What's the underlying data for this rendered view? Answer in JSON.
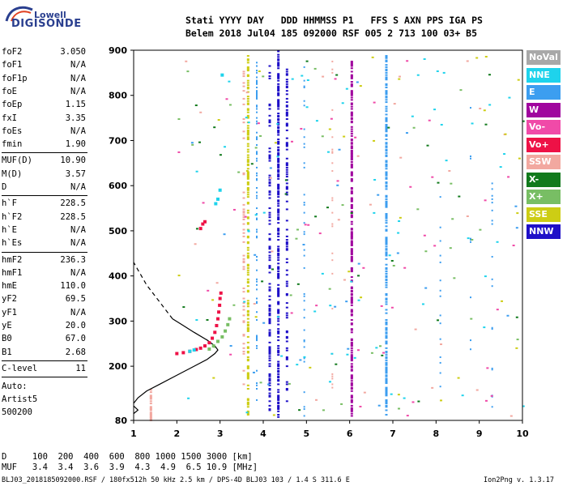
{
  "logo": {
    "top": "Lowell",
    "main": "DIGISONDE"
  },
  "header": {
    "line1": "Stati YYYY DAY   DDD HHMMSS P1   FFS S AXN PPS IGA PS",
    "line2": "Belem 2018 Jul04 185 092000 RSF 005 2 713 100 03+ B5"
  },
  "params_group1": [
    {
      "label": "foF2",
      "value": "3.050"
    },
    {
      "label": "foF1",
      "value": "N/A"
    },
    {
      "label": "foF1p",
      "value": "N/A"
    },
    {
      "label": "foE",
      "value": "N/A"
    },
    {
      "label": "foEp",
      "value": "1.15"
    },
    {
      "label": "fxI",
      "value": "3.35"
    },
    {
      "label": "foEs",
      "value": "N/A"
    },
    {
      "label": "fmin",
      "value": "1.90"
    }
  ],
  "params_group2": [
    {
      "label": "MUF(D)",
      "value": "10.90"
    },
    {
      "label": "M(D)",
      "value": "3.57"
    },
    {
      "label": "D",
      "value": "N/A"
    }
  ],
  "params_group3": [
    {
      "label": "h`F",
      "value": "228.5"
    },
    {
      "label": "h`F2",
      "value": "228.5"
    },
    {
      "label": "h`E",
      "value": "N/A"
    },
    {
      "label": "h`Es",
      "value": "N/A"
    }
  ],
  "params_group4": [
    {
      "label": "hmF2",
      "value": "236.3"
    },
    {
      "label": "hmF1",
      "value": "N/A"
    },
    {
      "label": "hmE",
      "value": "110.0"
    },
    {
      "label": "yF2",
      "value": "69.5"
    },
    {
      "label": "yF1",
      "value": "N/A"
    },
    {
      "label": "yE",
      "value": "20.0"
    },
    {
      "label": "B0",
      "value": "67.0"
    },
    {
      "label": "B1",
      "value": "2.68"
    }
  ],
  "clevel": {
    "label": "C-level",
    "value": "11"
  },
  "auto": [
    "Auto:",
    "Artist5",
    "500200"
  ],
  "legend": [
    {
      "name": "NoVal",
      "color": "#a8a8a8"
    },
    {
      "name": "NNE",
      "color": "#1ed3ec"
    },
    {
      "name": "E",
      "color": "#3c9ef0"
    },
    {
      "name": "W",
      "color": "#a0059e"
    },
    {
      "name": "Vo-",
      "color": "#f04aa8"
    },
    {
      "name": "Vo+",
      "color": "#ee1146"
    },
    {
      "name": "SSW",
      "color": "#f2a8a0"
    },
    {
      "name": "X-",
      "color": "#117a1c"
    },
    {
      "name": "X+",
      "color": "#78be64"
    },
    {
      "name": "SSE",
      "color": "#cdcd14"
    },
    {
      "name": "NNW",
      "color": "#1f10c8"
    }
  ],
  "muf_table": {
    "line1": "D     100  200  400  600  800 1000 1500 3000 [km]",
    "line2": "MUF   3.4  3.4  3.6  3.9  4.3  4.9  6.5 10.9 [MHz]"
  },
  "footer": {
    "left": "BLJ03_2018185092000.RSF / 180fx512h 50 kHz 2.5 km / DPS-4D BLJ03 103 / 1.4 S 311.6 E",
    "right": "Ion2Png v. 1.3.17"
  },
  "chart_data": {
    "type": "scatter",
    "xlim": [
      1,
      10
    ],
    "ylim": [
      80,
      900
    ],
    "x_ticks": [
      1,
      2,
      3,
      4,
      5,
      6,
      7,
      8,
      9,
      10
    ],
    "y_ticks": [
      80,
      200,
      300,
      400,
      500,
      600,
      700,
      800,
      900
    ],
    "traces": [
      {
        "name": "Vo+",
        "color": "#ee1146",
        "points": [
          [
            2.0,
            228
          ],
          [
            2.15,
            230
          ],
          [
            2.3,
            233
          ],
          [
            2.45,
            237
          ],
          [
            2.55,
            240
          ],
          [
            2.65,
            245
          ],
          [
            2.75,
            252
          ],
          [
            2.82,
            262
          ],
          [
            2.88,
            275
          ],
          [
            2.92,
            290
          ],
          [
            2.95,
            305
          ],
          [
            2.97,
            320
          ],
          [
            2.99,
            335
          ],
          [
            3.0,
            350
          ],
          [
            3.02,
            362
          ],
          [
            2.55,
            505
          ],
          [
            2.6,
            515
          ],
          [
            2.65,
            520
          ]
        ]
      },
      {
        "name": "X+",
        "color": "#78be64",
        "points": [
          [
            2.75,
            238
          ],
          [
            2.85,
            245
          ],
          [
            2.95,
            255
          ],
          [
            3.05,
            265
          ],
          [
            3.12,
            278
          ],
          [
            3.18,
            292
          ],
          [
            3.22,
            305
          ]
        ]
      },
      {
        "name": "NNE",
        "color": "#1ed3ec",
        "points": [
          [
            2.3,
            233
          ],
          [
            2.4,
            236
          ],
          [
            2.9,
            560
          ],
          [
            2.95,
            570
          ],
          [
            3.0,
            590
          ],
          [
            3.05,
            845
          ]
        ]
      }
    ],
    "profile_solid": [
      [
        1.0,
        118
      ],
      [
        1.1,
        130
      ],
      [
        1.3,
        145
      ],
      [
        1.6,
        160
      ],
      [
        2.0,
        180
      ],
      [
        2.4,
        200
      ],
      [
        2.7,
        215
      ],
      [
        2.88,
        228
      ],
      [
        2.95,
        236
      ],
      [
        2.88,
        245
      ],
      [
        2.7,
        258
      ],
      [
        2.4,
        275
      ],
      [
        2.1,
        293
      ],
      [
        1.9,
        305
      ]
    ],
    "profile_dashed": [
      [
        1.9,
        305
      ],
      [
        1.7,
        330
      ],
      [
        1.5,
        355
      ],
      [
        1.3,
        380
      ],
      [
        1.15,
        405
      ],
      [
        1.0,
        430
      ]
    ],
    "bottom_loop": [
      [
        1.0,
        112
      ],
      [
        1.1,
        103
      ],
      [
        1.0,
        95
      ]
    ]
  }
}
